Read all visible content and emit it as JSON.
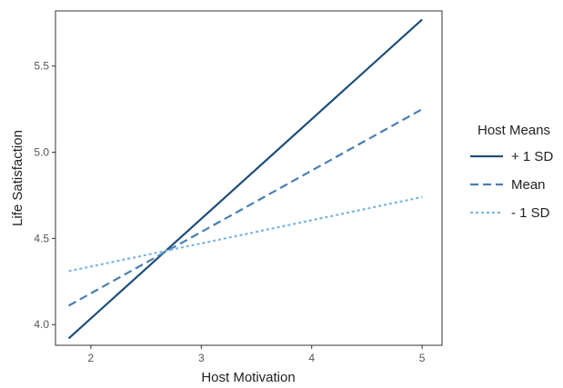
{
  "chart_data": {
    "type": "line",
    "xlabel": "Host Motivation",
    "ylabel": "Life Satisfaction",
    "xlim": [
      1.68,
      5.18
    ],
    "ylim": [
      3.88,
      5.82
    ],
    "xticks": [
      2,
      3,
      4,
      5
    ],
    "yticks": [
      4.0,
      4.5,
      5.0,
      5.5
    ],
    "xtick_labels": [
      "2",
      "3",
      "4",
      "5"
    ],
    "ytick_labels": [
      "4.0",
      "4.5",
      "5.0",
      "5.5"
    ],
    "grid": false,
    "legend": {
      "title": "Host Means",
      "placement": "right"
    },
    "series": [
      {
        "name": "+ 1 SD",
        "x": [
          1.8,
          5.0
        ],
        "y": [
          3.92,
          5.77
        ],
        "color": "#1f4e79",
        "dash": "solid"
      },
      {
        "name": "Mean",
        "x": [
          1.8,
          5.0
        ],
        "y": [
          4.11,
          5.25
        ],
        "color": "#4a7eb0",
        "dash": "dashed"
      },
      {
        "name": "- 1 SD",
        "x": [
          1.8,
          5.0
        ],
        "y": [
          4.31,
          4.74
        ],
        "color": "#7fb4e0",
        "dash": "dotted"
      }
    ]
  }
}
